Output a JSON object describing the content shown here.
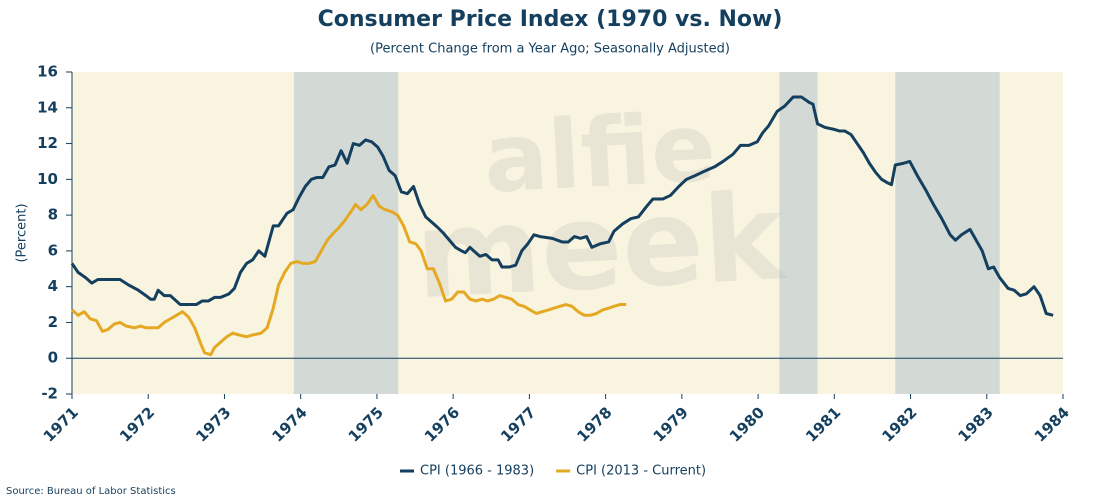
{
  "chart_data": {
    "type": "line",
    "title": "Consumer Price Index (1970 vs. Now)",
    "subtitle": "(Percent Change from a Year Ago; Seasonally Adjusted)",
    "y_label": "(Percent)",
    "source": "Source: Bureau of Labor Statistics",
    "watermark": [
      "alfie",
      "meek"
    ],
    "xlim": [
      1971,
      1984
    ],
    "xticks": [
      1971,
      1972,
      1973,
      1974,
      1975,
      1976,
      1977,
      1978,
      1979,
      1980,
      1981,
      1982,
      1983,
      1984
    ],
    "ylim": [
      -2,
      16
    ],
    "yticks": [
      -2,
      0,
      2,
      4,
      6,
      8,
      10,
      12,
      14,
      16
    ],
    "grid": false,
    "background": "#f8f4e0",
    "shade_color": "#d3dad6",
    "shaded_periods": [
      [
        1973.91,
        1975.28
      ],
      [
        1980.28,
        1980.78
      ],
      [
        1981.8,
        1983.17
      ]
    ],
    "legend": "bottom",
    "series": [
      {
        "name": "CPI (1966 - 1983)",
        "color": "#143f5e",
        "x": [
          1971.0,
          1971.08,
          1971.18,
          1971.26,
          1971.34,
          1971.47,
          1971.63,
          1971.74,
          1971.87,
          1971.97,
          1972.03,
          1972.08,
          1972.13,
          1972.21,
          1972.29,
          1972.42,
          1972.63,
          1972.71,
          1972.79,
          1972.87,
          1972.95,
          1973.06,
          1973.13,
          1973.21,
          1973.29,
          1973.37,
          1973.45,
          1973.53,
          1973.64,
          1973.71,
          1973.82,
          1973.9,
          1973.98,
          1974.06,
          1974.14,
          1974.21,
          1974.29,
          1974.37,
          1974.45,
          1974.53,
          1974.61,
          1974.69,
          1974.77,
          1974.85,
          1974.93,
          1975.01,
          1975.08,
          1975.16,
          1975.24,
          1975.32,
          1975.4,
          1975.48,
          1975.56,
          1975.64,
          1975.72,
          1975.8,
          1975.87,
          1975.95,
          1976.03,
          1976.11,
          1976.16,
          1976.22,
          1976.27,
          1976.35,
          1976.43,
          1976.51,
          1976.59,
          1976.64,
          1976.74,
          1976.82,
          1976.9,
          1976.98,
          1977.06,
          1977.14,
          1977.3,
          1977.43,
          1977.51,
          1977.59,
          1977.67,
          1977.75,
          1977.82,
          1977.93,
          1978.04,
          1978.11,
          1978.22,
          1978.33,
          1978.43,
          1978.54,
          1978.62,
          1978.75,
          1978.85,
          1978.96,
          1979.06,
          1979.17,
          1979.27,
          1979.43,
          1979.54,
          1979.67,
          1979.77,
          1979.88,
          1979.99,
          1980.06,
          1980.14,
          1980.25,
          1980.35,
          1980.46,
          1980.57,
          1980.67,
          1980.72,
          1980.78,
          1980.88,
          1980.99,
          1981.07,
          1981.14,
          1981.22,
          1981.3,
          1981.38,
          1981.46,
          1981.54,
          1981.62,
          1981.7,
          1981.75,
          1981.8,
          1981.91,
          1981.99,
          1982.09,
          1982.2,
          1982.3,
          1982.41,
          1982.52,
          1982.59,
          1982.67,
          1982.78,
          1982.86,
          1982.94,
          1983.02,
          1983.09,
          1983.17,
          1983.28,
          1983.36,
          1983.44,
          1983.52,
          1983.62,
          1983.7,
          1983.78,
          1983.87
        ],
        "values": [
          5.3,
          4.8,
          4.5,
          4.2,
          4.4,
          4.4,
          4.4,
          4.1,
          3.8,
          3.5,
          3.3,
          3.3,
          3.8,
          3.5,
          3.5,
          3.0,
          3.0,
          3.2,
          3.2,
          3.4,
          3.4,
          3.6,
          3.9,
          4.8,
          5.3,
          5.5,
          6.0,
          5.7,
          7.4,
          7.4,
          8.1,
          8.3,
          9.0,
          9.6,
          10.0,
          10.1,
          10.1,
          10.7,
          10.8,
          11.6,
          10.9,
          12.0,
          11.9,
          12.2,
          12.1,
          11.8,
          11.3,
          10.5,
          10.2,
          9.3,
          9.2,
          9.6,
          8.6,
          7.9,
          7.6,
          7.3,
          7.0,
          6.6,
          6.2,
          6.0,
          5.9,
          6.2,
          6.0,
          5.7,
          5.8,
          5.5,
          5.5,
          5.1,
          5.1,
          5.2,
          6.0,
          6.4,
          6.9,
          6.8,
          6.7,
          6.5,
          6.5,
          6.8,
          6.7,
          6.8,
          6.2,
          6.4,
          6.5,
          7.1,
          7.5,
          7.8,
          7.9,
          8.5,
          8.9,
          8.9,
          9.1,
          9.6,
          10.0,
          10.2,
          10.4,
          10.7,
          11.0,
          11.4,
          11.9,
          11.9,
          12.1,
          12.6,
          13.0,
          13.8,
          14.1,
          14.6,
          14.6,
          14.3,
          14.2,
          13.1,
          12.9,
          12.8,
          12.7,
          12.7,
          12.5,
          12.0,
          11.5,
          10.9,
          10.4,
          10.0,
          9.8,
          9.7,
          10.8,
          10.9,
          11.0,
          10.2,
          9.4,
          8.6,
          7.8,
          6.9,
          6.6,
          6.9,
          7.2,
          6.6,
          6.0,
          5.0,
          5.1,
          4.5,
          3.9,
          3.8,
          3.5,
          3.6,
          4.0,
          3.5,
          2.5,
          2.4
        ]
      },
      {
        "name": "CPI (2013 - Current)",
        "color": "#e5a823",
        "x": [
          1971.0,
          1971.08,
          1971.16,
          1971.24,
          1971.32,
          1971.4,
          1971.47,
          1971.55,
          1971.63,
          1971.71,
          1971.82,
          1971.9,
          1971.97,
          1972.05,
          1972.13,
          1972.21,
          1972.29,
          1972.37,
          1972.45,
          1972.53,
          1972.61,
          1972.69,
          1972.74,
          1972.82,
          1972.87,
          1972.95,
          1973.03,
          1973.11,
          1973.19,
          1973.29,
          1973.37,
          1973.48,
          1973.56,
          1973.64,
          1973.71,
          1973.79,
          1973.87,
          1973.95,
          1974.03,
          1974.11,
          1974.19,
          1974.27,
          1974.35,
          1974.43,
          1974.5,
          1974.58,
          1974.66,
          1974.72,
          1974.79,
          1974.87,
          1974.95,
          1975.03,
          1975.11,
          1975.19,
          1975.27,
          1975.35,
          1975.43,
          1975.51,
          1975.58,
          1975.66,
          1975.74,
          1975.82,
          1975.9,
          1975.98,
          1976.06,
          1976.14,
          1976.22,
          1976.3,
          1976.38,
          1976.45,
          1976.53,
          1976.61,
          1976.69,
          1976.77,
          1976.85,
          1976.93,
          1977.01,
          1977.09,
          1977.17,
          1977.25,
          1977.32,
          1977.4,
          1977.48,
          1977.56,
          1977.64,
          1977.72,
          1977.8,
          1977.88,
          1977.96,
          1978.04,
          1978.11,
          1978.19,
          1978.27
        ],
        "values": [
          2.7,
          2.4,
          2.6,
          2.2,
          2.1,
          1.5,
          1.6,
          1.9,
          2.0,
          1.8,
          1.7,
          1.8,
          1.7,
          1.7,
          1.7,
          2.0,
          2.2,
          2.4,
          2.6,
          2.3,
          1.7,
          0.8,
          0.3,
          0.2,
          0.6,
          0.9,
          1.2,
          1.4,
          1.3,
          1.2,
          1.3,
          1.4,
          1.7,
          2.8,
          4.1,
          4.8,
          5.3,
          5.4,
          5.3,
          5.3,
          5.4,
          6.0,
          6.6,
          7.0,
          7.3,
          7.7,
          8.2,
          8.6,
          8.3,
          8.6,
          9.1,
          8.5,
          8.3,
          8.2,
          8.0,
          7.4,
          6.5,
          6.4,
          6.0,
          5.0,
          5.0,
          4.2,
          3.2,
          3.3,
          3.7,
          3.7,
          3.3,
          3.2,
          3.3,
          3.2,
          3.3,
          3.5,
          3.4,
          3.3,
          3.0,
          2.9,
          2.7,
          2.5,
          2.6,
          2.7,
          2.8,
          2.9,
          3.0,
          2.9,
          2.6,
          2.4,
          2.4,
          2.5,
          2.7,
          2.8,
          2.9,
          3.0,
          3.0
        ]
      }
    ]
  }
}
